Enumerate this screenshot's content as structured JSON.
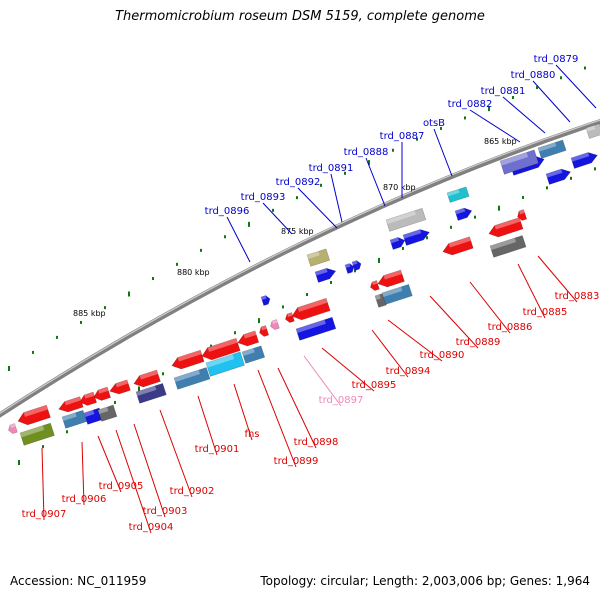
{
  "title": "Thermomicrobium roseum DSM 5159, complete genome",
  "footer": {
    "accession": "Accession: NC_011959",
    "summary": "Topology: circular; Length: 2,003,006 bp; Genes: 1,964"
  },
  "colors": {
    "backbone": "#808080",
    "forward_label": "#0000cc",
    "reverse_label": "#dd0000",
    "rna_label": "#ee88bb",
    "tick": "#117711"
  },
  "kbp_ticks": [
    {
      "label": "865 kbp"
    },
    {
      "label": "870 kbp"
    },
    {
      "label": "875 kbp"
    },
    {
      "label": "880 kbp"
    },
    {
      "label": "885 kbp"
    }
  ],
  "forward_labels": [
    {
      "text": "trd_0879"
    },
    {
      "text": "trd_0880"
    },
    {
      "text": "trd_0881"
    },
    {
      "text": "trd_0882"
    },
    {
      "text": "otsB"
    },
    {
      "text": "trd_0887"
    },
    {
      "text": "trd_0888"
    },
    {
      "text": "trd_0891"
    },
    {
      "text": "trd_0892"
    },
    {
      "text": "trd_0893"
    },
    {
      "text": "trd_0896"
    }
  ],
  "reverse_labels": [
    {
      "text": "trd_0883"
    },
    {
      "text": "trd_0885"
    },
    {
      "text": "trd_0886"
    },
    {
      "text": "trd_0889"
    },
    {
      "text": "trd_0890"
    },
    {
      "text": "trd_0894"
    },
    {
      "text": "trd_0895"
    },
    {
      "text": "trd_0897"
    },
    {
      "text": "trd_0898"
    },
    {
      "text": "trd_0899"
    },
    {
      "text": "fhs"
    },
    {
      "text": "trd_0901"
    },
    {
      "text": "trd_0902"
    },
    {
      "text": "trd_0903"
    },
    {
      "text": "trd_0904"
    },
    {
      "text": "trd_0905"
    },
    {
      "text": "trd_0906"
    },
    {
      "text": "trd_0907"
    }
  ]
}
